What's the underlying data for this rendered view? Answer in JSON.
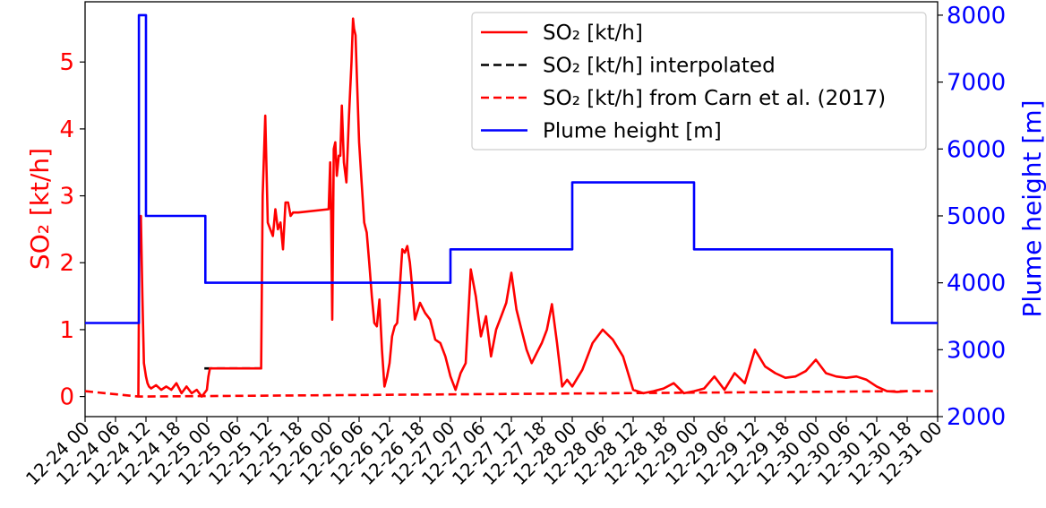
{
  "chart_data": {
    "type": "line",
    "ylabel": "SO₂ [kt/h]",
    "y2label": "Plume height [m]",
    "xlim": [
      "12-24 00",
      "12-31 00"
    ],
    "ylim": [
      -0.3,
      5.9
    ],
    "y2lim": [
      2000,
      8200
    ],
    "yticks": [
      "0",
      "1",
      "2",
      "3",
      "4",
      "5"
    ],
    "y2ticks": [
      "2000",
      "3000",
      "4000",
      "5000",
      "6000",
      "7000",
      "8000"
    ],
    "xticks": [
      "12-24 00",
      "12-24 06",
      "12-24 12",
      "12-24 18",
      "12-25 00",
      "12-25 06",
      "12-25 12",
      "12-25 18",
      "12-26 00",
      "12-26 06",
      "12-26 12",
      "12-26 18",
      "12-27 00",
      "12-27 06",
      "12-27 12",
      "12-27 18",
      "12-28 00",
      "12-28 06",
      "12-28 12",
      "12-28 18",
      "12-29 00",
      "12-29 06",
      "12-29 12",
      "12-29 18",
      "12-30 00",
      "12-30 06",
      "12-30 12",
      "12-30 18",
      "12-31 00"
    ],
    "legend_position": "top-right",
    "colors": {
      "so2": "#ff0000",
      "interpolated": "#000000",
      "carn": "#ff0000",
      "plume": "#0000ff"
    },
    "series": [
      {
        "name": "SO₂ [kt/h]",
        "axis": "left",
        "style": "solid",
        "x": [
          10.5,
          10.7,
          11.0,
          11.3,
          11.6,
          12.0,
          12.3,
          12.6,
          13.0,
          14.0,
          15.0,
          16.0,
          17.0,
          18.0,
          19.0,
          20.0,
          21.0,
          22.0,
          23.0,
          24.0,
          24.3,
          24.6,
          34.7,
          35.0,
          35.5,
          36.0,
          36.5,
          37.0,
          37.5,
          38.0,
          38.5,
          39.0,
          39.5,
          40.0,
          40.5,
          41.0,
          41.5,
          42.0,
          48.0,
          48.3,
          48.5,
          48.7,
          49.0,
          49.3,
          49.6,
          50.0,
          50.3,
          50.6,
          51.0,
          51.5,
          52.0,
          52.5,
          52.8,
          53.0,
          53.3,
          53.6,
          54.0,
          54.5,
          55.0,
          55.5,
          56.0,
          56.5,
          57.0,
          57.5,
          58.0,
          58.5,
          59.0,
          59.5,
          60.0,
          60.5,
          61.0,
          61.5,
          62.0,
          62.5,
          63.0,
          63.5,
          64.0,
          64.5,
          65.0,
          66.0,
          67.0,
          68.0,
          69.0,
          70.0,
          71.0,
          72.0,
          73.0,
          74.0,
          75.0,
          76.0,
          77.0,
          78.0,
          79.0,
          80.0,
          81.0,
          82.0,
          83.0,
          84.0,
          85.0,
          86.0,
          87.0,
          88.0,
          89.0,
          90.0,
          91.0,
          92.0,
          93.0,
          94.0,
          95.0,
          96.0,
          98.0,
          100.0,
          102.0,
          104.0,
          106.0,
          108.0,
          110.0,
          112.0,
          114.0,
          116.0,
          118.0,
          120.0,
          122.0,
          124.0,
          126.0,
          128.0,
          130.0,
          132.0,
          134.0,
          136.0,
          138.0,
          140.0,
          142.0,
          144.0,
          146.0,
          148.0,
          150.0,
          152.0,
          154.0,
          156.0,
          158.0,
          160.0,
          162.0
        ],
        "values": [
          0.0,
          2.5,
          2.7,
          1.5,
          0.5,
          0.3,
          0.2,
          0.15,
          0.12,
          0.17,
          0.1,
          0.15,
          0.1,
          0.2,
          0.05,
          0.15,
          0.05,
          0.1,
          0.0,
          0.1,
          0.3,
          0.42,
          0.42,
          3.0,
          4.2,
          2.6,
          2.5,
          2.4,
          2.8,
          2.5,
          2.6,
          2.2,
          2.9,
          2.9,
          2.7,
          2.75,
          2.75,
          2.75,
          2.8,
          3.5,
          2.7,
          1.15,
          3.7,
          3.8,
          3.3,
          3.6,
          3.6,
          4.35,
          3.5,
          3.2,
          4.2,
          5.0,
          5.65,
          5.5,
          5.4,
          4.7,
          3.8,
          3.2,
          2.6,
          2.45,
          2.0,
          1.5,
          1.1,
          1.05,
          1.45,
          0.7,
          0.15,
          0.3,
          0.5,
          0.9,
          1.05,
          1.1,
          1.6,
          2.2,
          2.15,
          2.25,
          2.0,
          1.6,
          1.15,
          1.4,
          1.25,
          1.15,
          0.85,
          0.8,
          0.6,
          0.3,
          0.1,
          0.35,
          0.5,
          1.9,
          1.5,
          0.9,
          1.2,
          0.6,
          1.0,
          1.2,
          1.4,
          1.85,
          1.3,
          1.0,
          0.7,
          0.5,
          0.65,
          0.8,
          1.0,
          1.38,
          0.8,
          0.15,
          0.25,
          0.15,
          0.4,
          0.8,
          1.0,
          0.85,
          0.6,
          0.1,
          0.05,
          0.08,
          0.12,
          0.2,
          0.05,
          0.08,
          0.12,
          0.3,
          0.1,
          0.35,
          0.2,
          0.7,
          0.45,
          0.35,
          0.28,
          0.3,
          0.38,
          0.55,
          0.35,
          0.3,
          0.28,
          0.3,
          0.25,
          0.15,
          0.08,
          0.07,
          0.08
        ]
      },
      {
        "name": "SO₂ [kt/h] interpolated",
        "axis": "left",
        "style": "dashed",
        "x": [
          23.5,
          34.7
        ],
        "values": [
          0.42,
          0.42
        ]
      },
      {
        "name": "SO₂ [kt/h] from Carn et al. (2017)",
        "axis": "left",
        "style": "dashed",
        "x": [
          0,
          10.5,
          10.5,
          162,
          168
        ],
        "values": [
          0.08,
          0.0,
          0.0,
          0.08,
          0.08
        ]
      },
      {
        "name": "Plume height [m]",
        "axis": "right",
        "style": "solid",
        "x": [
          0,
          10.6,
          10.6,
          12.0,
          12.0,
          23.7,
          23.7,
          72.0,
          72.0,
          96.0,
          96.0,
          120.0,
          120.0,
          159.0,
          159.0,
          168.0
        ],
        "values": [
          3400,
          3400,
          8000,
          8000,
          5000,
          5000,
          4000,
          4000,
          4500,
          4500,
          5500,
          5500,
          4500,
          4500,
          3400,
          3400
        ]
      }
    ]
  }
}
